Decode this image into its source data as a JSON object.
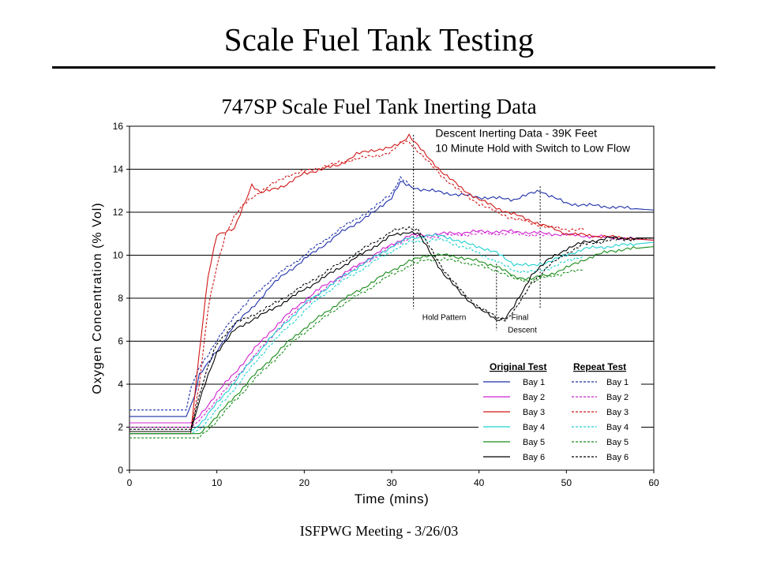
{
  "slide": {
    "title": "Scale Fuel Tank Testing",
    "footer": "ISFPWG Meeting - 3/26/03"
  },
  "chart_data": {
    "type": "line",
    "title": "747SP Scale Fuel Tank Inerting Data",
    "xlabel": "Time (mins)",
    "ylabel": "Oxygen Concentration (% Vol)",
    "xlim": [
      0,
      60
    ],
    "ylim": [
      0,
      16
    ],
    "xticks": [
      0,
      10,
      20,
      30,
      40,
      50,
      60
    ],
    "yticks": [
      0,
      2,
      4,
      6,
      8,
      10,
      12,
      14,
      16
    ],
    "grid": "horizontal",
    "annotations": [
      {
        "text": "Descent Inerting Data - 39K Feet",
        "x": 35,
        "y": 15.5
      },
      {
        "text": "10 Minute Hold with Switch to Low Flow",
        "x": 35,
        "y": 14.8
      },
      {
        "text": "Hold Pattern",
        "x": 33.5,
        "y": 7.0
      },
      {
        "text": "Final",
        "x": 43.7,
        "y": 7.0
      },
      {
        "text": "Descent",
        "x": 43.3,
        "y": 6.4
      }
    ],
    "markers_x": [
      32.5,
      42.0,
      47.0
    ],
    "legend": {
      "position": "bottom-right",
      "original_header": "Original Test",
      "repeat_header": "Repeat Test"
    },
    "series": [
      {
        "name": "Bay 1",
        "test": "Original Test",
        "color": "#1c2fa8",
        "dashed": false,
        "x": [
          0,
          6.5,
          7.5,
          8,
          10,
          12,
          14,
          16,
          18,
          20,
          22,
          24,
          26,
          28,
          30,
          31,
          32,
          33,
          36,
          40,
          44,
          47,
          50,
          60
        ],
        "y": [
          2.5,
          2.5,
          3.5,
          4.5,
          5.5,
          6.8,
          7.5,
          8.5,
          9.2,
          9.8,
          10.4,
          11.0,
          11.5,
          12.0,
          12.7,
          13.4,
          13.2,
          13.1,
          12.9,
          12.7,
          12.6,
          13.0,
          12.4,
          12.1
        ]
      },
      {
        "name": "Bay 1",
        "test": "Repeat Test",
        "color": "#1c2fa8",
        "dashed": true,
        "x": [
          0,
          6.5,
          7,
          8,
          10,
          12,
          14,
          16,
          18,
          20,
          22,
          24,
          26,
          28,
          30,
          31,
          32
        ],
        "y": [
          2.8,
          2.8,
          3.8,
          4.8,
          6.0,
          7.2,
          8.0,
          8.8,
          9.4,
          10.0,
          10.6,
          11.2,
          11.7,
          12.2,
          12.9,
          13.6,
          13.3
        ]
      },
      {
        "name": "Bay 2",
        "test": "Original Test",
        "color": "#d020d0",
        "dashed": false,
        "x": [
          0,
          7,
          8,
          10,
          12,
          14,
          16,
          18,
          20,
          22,
          24,
          26,
          28,
          30,
          32,
          36,
          40,
          44,
          48,
          52,
          60
        ],
        "y": [
          2.2,
          2.2,
          2.5,
          3.6,
          4.5,
          5.5,
          6.4,
          7.2,
          7.9,
          8.5,
          9.0,
          9.5,
          10.0,
          10.5,
          10.9,
          11.0,
          11.1,
          11.1,
          11.0,
          10.9,
          10.7
        ]
      },
      {
        "name": "Bay 2",
        "test": "Repeat Test",
        "color": "#d020d0",
        "dashed": true,
        "x": [
          0,
          7,
          8,
          10,
          12,
          14,
          16,
          18,
          20,
          22,
          24,
          26,
          28,
          30,
          32,
          36,
          40,
          44,
          48
        ],
        "y": [
          2.0,
          2.0,
          2.3,
          3.3,
          4.2,
          5.2,
          6.1,
          7.0,
          7.7,
          8.3,
          8.9,
          9.4,
          9.9,
          10.4,
          10.8,
          10.9,
          11.0,
          11.0,
          10.9
        ]
      },
      {
        "name": "Bay 3",
        "test": "Original Test",
        "color": "#d01818",
        "dashed": false,
        "x": [
          0,
          7,
          8,
          9,
          10,
          12,
          14,
          15,
          16,
          18,
          20,
          22,
          24,
          26,
          28,
          30,
          31,
          32,
          34,
          36,
          38,
          40,
          42,
          44,
          46,
          48,
          50,
          60
        ],
        "y": [
          1.7,
          1.7,
          5.5,
          9.0,
          11.0,
          11.2,
          13.3,
          12.9,
          13.0,
          13.3,
          13.8,
          14.0,
          14.2,
          14.7,
          14.9,
          15.0,
          15.2,
          15.6,
          14.6,
          13.8,
          13.1,
          12.6,
          12.2,
          11.9,
          11.6,
          11.3,
          11.0,
          10.7
        ]
      },
      {
        "name": "Bay 3",
        "test": "Repeat Test",
        "color": "#d01818",
        "dashed": true,
        "x": [
          0,
          7,
          8,
          9,
          10,
          11,
          12,
          13,
          14,
          16,
          18,
          20,
          22,
          24,
          26,
          28,
          30,
          31,
          32,
          34,
          36,
          38,
          40,
          42,
          44,
          46,
          48,
          50,
          52
        ],
        "y": [
          1.8,
          1.8,
          4.0,
          7.5,
          9.5,
          11.0,
          11.8,
          12.3,
          12.7,
          13.2,
          13.7,
          13.9,
          14.1,
          14.3,
          14.5,
          14.6,
          14.8,
          15.2,
          15.3,
          14.4,
          13.6,
          12.9,
          12.4,
          12.0,
          11.7,
          11.5,
          11.3,
          11.2,
          11.2
        ]
      },
      {
        "name": "Bay 4",
        "test": "Original Test",
        "color": "#20d0d0",
        "dashed": false,
        "x": [
          0,
          7,
          8,
          10,
          12,
          14,
          16,
          18,
          20,
          22,
          24,
          26,
          28,
          30,
          32,
          34,
          36,
          38,
          40,
          42,
          44,
          46,
          48,
          50,
          52,
          60
        ],
        "y": [
          1.8,
          1.8,
          2.1,
          3.1,
          4.1,
          5.1,
          6.1,
          6.9,
          7.7,
          8.3,
          8.9,
          9.4,
          9.9,
          10.4,
          10.8,
          10.9,
          10.9,
          10.6,
          10.4,
          10.1,
          9.6,
          9.5,
          9.7,
          10.0,
          10.3,
          10.6
        ]
      },
      {
        "name": "Bay 4",
        "test": "Repeat Test",
        "color": "#20d0d0",
        "dashed": true,
        "x": [
          0,
          7,
          8,
          10,
          12,
          14,
          16,
          18,
          20,
          22,
          24,
          26,
          28,
          30,
          32,
          34,
          36,
          38,
          40,
          42,
          44,
          46,
          48,
          50,
          52
        ],
        "y": [
          1.7,
          1.7,
          1.9,
          2.8,
          3.8,
          4.8,
          5.8,
          6.6,
          7.4,
          8.1,
          8.7,
          9.2,
          9.7,
          10.2,
          10.6,
          10.7,
          10.7,
          10.4,
          10.1,
          9.7,
          9.3,
          9.2,
          9.4,
          9.7,
          10.0
        ]
      },
      {
        "name": "Bay 5",
        "test": "Original Test",
        "color": "#1a8c1a",
        "dashed": false,
        "x": [
          0,
          8,
          10,
          12,
          14,
          16,
          18,
          20,
          22,
          24,
          26,
          28,
          30,
          32,
          34,
          36,
          38,
          40,
          42,
          44,
          46,
          48,
          50,
          52,
          55,
          60
        ],
        "y": [
          1.7,
          1.7,
          2.5,
          3.4,
          4.3,
          5.1,
          5.9,
          6.6,
          7.2,
          7.8,
          8.3,
          8.8,
          9.3,
          9.7,
          10.0,
          10.0,
          9.9,
          9.7,
          9.5,
          9.0,
          8.9,
          9.1,
          9.4,
          9.8,
          10.2,
          10.4
        ]
      },
      {
        "name": "Bay 5",
        "test": "Repeat Test",
        "color": "#1a8c1a",
        "dashed": true,
        "x": [
          0,
          8,
          10,
          12,
          14,
          16,
          18,
          20,
          22,
          24,
          26,
          28,
          30,
          32,
          34,
          36,
          38,
          40,
          42,
          44,
          46,
          48,
          50,
          52
        ],
        "y": [
          1.5,
          1.5,
          2.3,
          3.2,
          4.1,
          4.9,
          5.7,
          6.4,
          7.0,
          7.6,
          8.1,
          8.6,
          9.1,
          9.5,
          9.8,
          9.8,
          9.7,
          9.5,
          9.3,
          8.9,
          8.8,
          9.0,
          9.2,
          9.3
        ]
      },
      {
        "name": "Bay 6",
        "test": "Original Test",
        "color": "#000000",
        "dashed": false,
        "x": [
          0,
          7,
          8,
          9,
          10,
          12,
          14,
          16,
          18,
          20,
          22,
          24,
          26,
          28,
          30,
          32,
          33,
          34,
          36,
          38,
          40,
          42,
          43,
          44,
          45,
          46,
          48,
          50,
          52,
          55,
          60
        ],
        "y": [
          1.8,
          1.8,
          3.2,
          4.4,
          5.5,
          6.5,
          7.0,
          7.4,
          7.9,
          8.4,
          8.9,
          9.4,
          9.9,
          10.4,
          10.9,
          11.1,
          11.0,
          10.4,
          9.1,
          8.2,
          7.5,
          7.0,
          7.1,
          7.6,
          8.3,
          9.1,
          9.8,
          10.3,
          10.6,
          10.8,
          10.8
        ]
      },
      {
        "name": "Bay 6",
        "test": "Repeat Test",
        "color": "#000000",
        "dashed": true,
        "x": [
          0,
          7,
          8,
          9,
          10,
          12,
          14,
          16,
          18,
          20,
          22,
          24,
          26,
          28,
          30,
          32,
          33,
          34,
          36,
          38,
          40,
          42,
          43,
          44,
          45,
          46,
          48,
          50,
          52,
          55,
          60
        ],
        "y": [
          1.9,
          1.9,
          3.5,
          4.8,
          5.9,
          6.8,
          7.2,
          7.6,
          8.1,
          8.6,
          9.1,
          9.6,
          10.1,
          10.6,
          11.1,
          11.3,
          11.2,
          10.6,
          9.3,
          8.3,
          7.6,
          7.1,
          7.0,
          7.4,
          8.0,
          8.7,
          9.5,
          10.1,
          10.5,
          10.7,
          10.8
        ]
      }
    ]
  }
}
